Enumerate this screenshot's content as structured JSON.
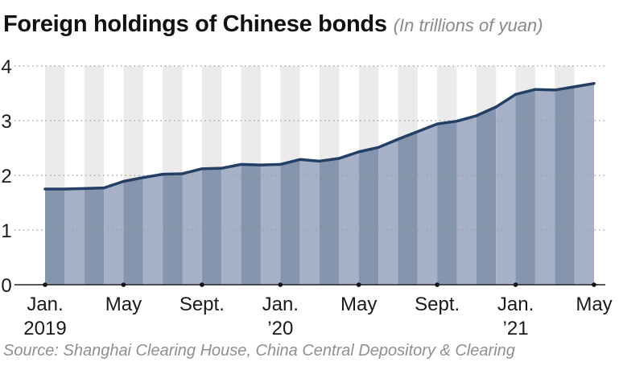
{
  "header": {
    "title": "Foreign holdings of Chinese bonds",
    "subtitle": "(In trillions of yuan)"
  },
  "footer": {
    "source": "Source: Shanghai Clearing House, China Central Depository & Clearing"
  },
  "colors": {
    "line": "#233f66",
    "area_dark": "#8595ad",
    "area_light": "#a6b1c8",
    "band_light": "#ebebeb",
    "grid": "#9a9a9a"
  },
  "chart_data": {
    "type": "area",
    "x": [
      "2019-01",
      "2019-02",
      "2019-03",
      "2019-04",
      "2019-05",
      "2019-06",
      "2019-07",
      "2019-08",
      "2019-09",
      "2019-10",
      "2019-11",
      "2019-12",
      "2020-01",
      "2020-02",
      "2020-03",
      "2020-04",
      "2020-05",
      "2020-06",
      "2020-07",
      "2020-08",
      "2020-09",
      "2020-10",
      "2020-11",
      "2020-12",
      "2021-01",
      "2021-02",
      "2021-03",
      "2021-04",
      "2021-05"
    ],
    "series": [
      {
        "values": [
          1.75,
          1.75,
          1.76,
          1.77,
          1.89,
          1.96,
          2.02,
          2.03,
          2.12,
          2.13,
          2.2,
          2.19,
          2.2,
          2.29,
          2.26,
          2.31,
          2.43,
          2.51,
          2.66,
          2.8,
          2.94,
          2.99,
          3.09,
          3.25,
          3.48,
          3.57,
          3.56,
          3.62,
          3.68
        ]
      }
    ],
    "x_tick_labels": [
      {
        "index": 0,
        "line1": "Jan.",
        "line2": "2019"
      },
      {
        "index": 4,
        "line1": "May",
        "line2": ""
      },
      {
        "index": 8,
        "line1": "Sept.",
        "line2": ""
      },
      {
        "index": 12,
        "line1": "Jan.",
        "line2": "’20"
      },
      {
        "index": 16,
        "line1": "May",
        "line2": ""
      },
      {
        "index": 20,
        "line1": "Sept.",
        "line2": ""
      },
      {
        "index": 24,
        "line1": "Jan.",
        "line2": "’21"
      },
      {
        "index": 28,
        "line1": "May",
        "line2": ""
      }
    ],
    "y_ticks": [
      0,
      1,
      2,
      3,
      4
    ],
    "ylim": [
      0,
      4
    ],
    "grid": true,
    "legend": "none"
  }
}
